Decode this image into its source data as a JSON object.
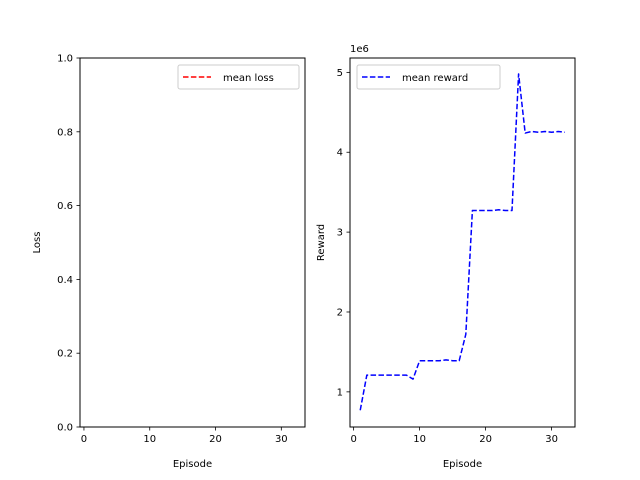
{
  "chart_data": [
    {
      "type": "line",
      "xlabel": "Episode",
      "ylabel": "Loss",
      "xlim": [
        -0.6,
        33.6
      ],
      "ylim": [
        0.0,
        1.0
      ],
      "xticks": [
        0,
        10,
        20,
        30
      ],
      "xtick_labels": [
        "0",
        "10",
        "20",
        "30"
      ],
      "yticks": [
        0.0,
        0.2,
        0.4,
        0.6,
        0.8,
        1.0
      ],
      "ytick_labels": [
        "0.0",
        "0.2",
        "0.4",
        "0.6",
        "0.8",
        "1.0"
      ],
      "legend_position": "upper right",
      "series": [
        {
          "name": "mean loss",
          "color": "#ff0000",
          "linestyle": "dashed",
          "x": [],
          "y": []
        }
      ]
    },
    {
      "type": "line",
      "xlabel": "Episode",
      "ylabel": "Reward",
      "offset_text": "1e6",
      "xlim": [
        -0.55,
        33.55
      ],
      "ylim": [
        0.56,
        5.18
      ],
      "xticks": [
        0,
        10,
        20,
        30
      ],
      "xtick_labels": [
        "0",
        "10",
        "20",
        "30"
      ],
      "yticks": [
        1,
        2,
        3,
        4,
        5
      ],
      "ytick_labels": [
        "1",
        "2",
        "3",
        "4",
        "5"
      ],
      "legend_position": "upper left",
      "series": [
        {
          "name": "mean reward",
          "color": "#0000ff",
          "linestyle": "dashed",
          "x": [
            1,
            2,
            3,
            4,
            5,
            6,
            7,
            8,
            9,
            10,
            11,
            12,
            13,
            14,
            15,
            16,
            17,
            18,
            19,
            20,
            21,
            22,
            23,
            24,
            25,
            26,
            27,
            28,
            29,
            30,
            31,
            32
          ],
          "y": [
            0.77,
            1.21,
            1.21,
            1.21,
            1.21,
            1.21,
            1.21,
            1.21,
            1.16,
            1.39,
            1.39,
            1.39,
            1.39,
            1.4,
            1.39,
            1.39,
            1.72,
            3.27,
            3.27,
            3.27,
            3.27,
            3.28,
            3.27,
            3.27,
            4.98,
            4.24,
            4.26,
            4.25,
            4.26,
            4.25,
            4.26,
            4.25
          ]
        }
      ]
    }
  ]
}
